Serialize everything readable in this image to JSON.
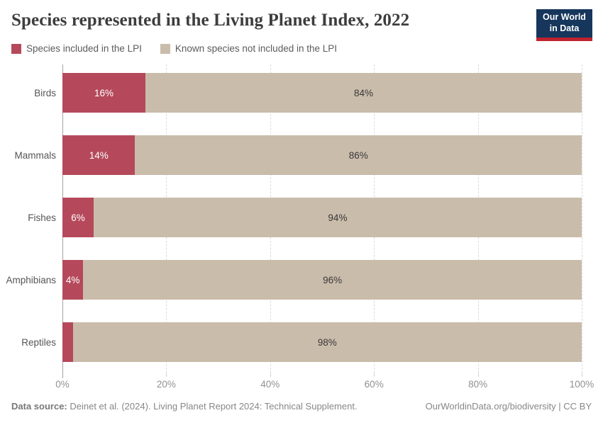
{
  "header": {
    "title": "Species represented in the Living Planet Index, 2022",
    "logo": {
      "line1": "Our World",
      "line2": "in Data"
    }
  },
  "legend": {
    "items": [
      {
        "label": "Species included in the LPI",
        "color": "#b5495b"
      },
      {
        "label": "Known species not included in the LPI",
        "color": "#cabcab"
      }
    ]
  },
  "chart_data": {
    "type": "bar",
    "orientation": "horizontal",
    "stacked": true,
    "title": "Species represented in the Living Planet Index, 2022",
    "categories": [
      "Birds",
      "Mammals",
      "Fishes",
      "Amphibians",
      "Reptiles"
    ],
    "series": [
      {
        "name": "Species included in the LPI",
        "color": "#b5495b",
        "values": [
          16,
          14,
          6,
          4,
          2
        ],
        "labels": [
          "16%",
          "14%",
          "6%",
          "4%",
          ""
        ]
      },
      {
        "name": "Known species not included in the LPI",
        "color": "#cabcab",
        "values": [
          84,
          86,
          94,
          96,
          98
        ],
        "labels": [
          "84%",
          "86%",
          "94%",
          "96%",
          "98%"
        ]
      }
    ],
    "xlim": [
      0,
      100
    ],
    "x_ticks": [
      {
        "value": 0,
        "label": "0%"
      },
      {
        "value": 20,
        "label": "20%"
      },
      {
        "value": 40,
        "label": "40%"
      },
      {
        "value": 60,
        "label": "60%"
      },
      {
        "value": 80,
        "label": "80%"
      },
      {
        "value": 100,
        "label": "100%"
      }
    ],
    "grid": "vertical-dashed",
    "legend_position": "top"
  },
  "footer": {
    "source_label": "Data source:",
    "source_text": " Deinet et al. (2024). Living Planet Report 2024: Technical Supplement.",
    "link_text": "OurWorldinData.org/biodiversity | CC BY"
  }
}
